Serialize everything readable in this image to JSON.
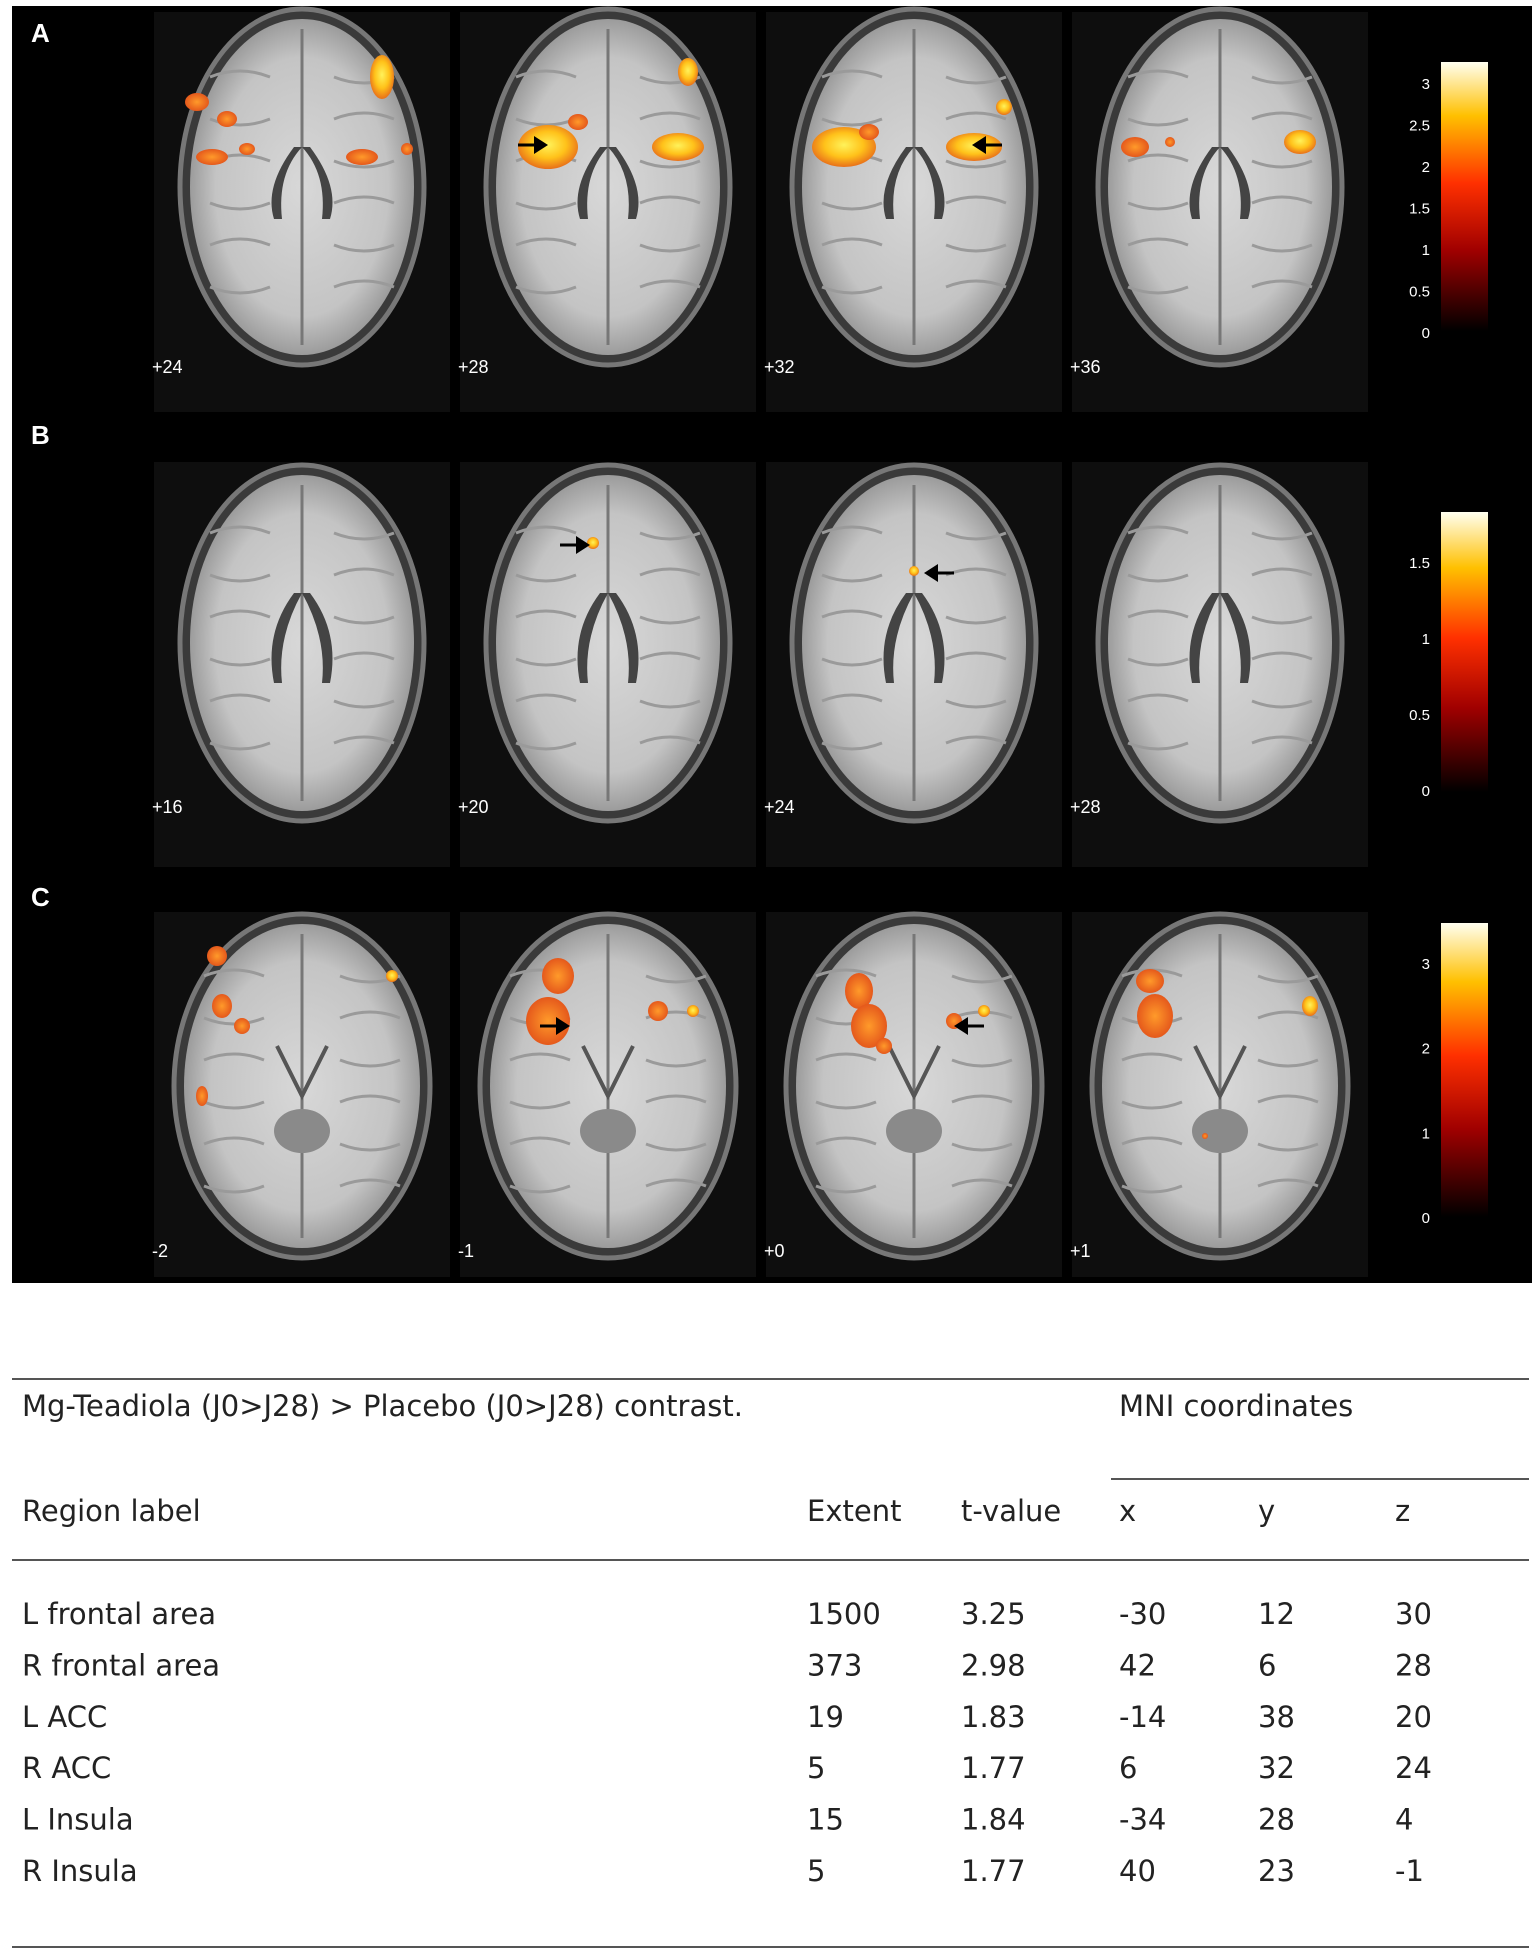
{
  "panels": [
    {
      "label": "A",
      "slices": [
        "+24",
        "+28",
        "+32",
        "+36"
      ],
      "colorbar_ticks": [
        "0",
        "0.5",
        "1",
        "1.5",
        "2",
        "2.5",
        "3"
      ]
    },
    {
      "label": "B",
      "slices": [
        "+16",
        "+20",
        "+24",
        "+28"
      ],
      "colorbar_ticks": [
        "0",
        "0.5",
        "1",
        "1.5"
      ]
    },
    {
      "label": "C",
      "slices": [
        "-2",
        "-1",
        "+0",
        "+1"
      ],
      "colorbar_ticks": [
        "0",
        "1",
        "2",
        "3"
      ]
    }
  ],
  "table": {
    "caption": "Mg-Teadiola (J0>J28) > Placebo (J0>J28) contrast.",
    "group_header": "MNI coordinates",
    "columns": [
      "Region label",
      "Extent",
      "t-value",
      "x",
      "y",
      "z"
    ],
    "rows": [
      [
        "L frontal area",
        "1500",
        "3.25",
        "-30",
        "12",
        "30"
      ],
      [
        "R frontal area",
        "373",
        "2.98",
        "42",
        "6",
        "28"
      ],
      [
        "L ACC",
        "19",
        "1.83",
        "-14",
        "38",
        "20"
      ],
      [
        "R ACC",
        "5",
        "1.77",
        "6",
        "32",
        "24"
      ],
      [
        "L Insula",
        "15",
        "1.84",
        "-34",
        "28",
        "4"
      ],
      [
        "R Insula",
        "5",
        "1.77",
        "40",
        "23",
        "-1"
      ]
    ]
  }
}
